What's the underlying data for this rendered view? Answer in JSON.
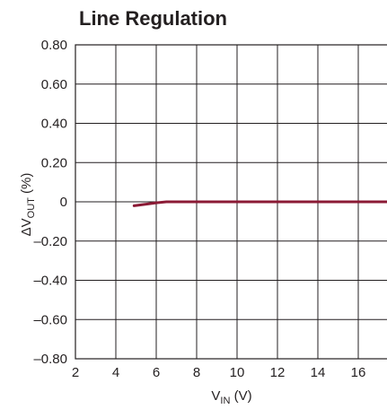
{
  "chart_data": {
    "type": "line",
    "title": "Line Regulation",
    "xlabel": {
      "main": "V",
      "sub": "IN",
      "unit": " (V)"
    },
    "ylabel": {
      "prefix": "ΔV",
      "sub": "OUT",
      "unit": " (%)"
    },
    "xlim": [
      2,
      18
    ],
    "ylim": [
      -0.8,
      0.8
    ],
    "x_ticks": [
      "2",
      "4",
      "6",
      "8",
      "10",
      "12",
      "14",
      "16"
    ],
    "y_ticks": [
      "0.80",
      "0.60",
      "0.40",
      "0.20",
      "0",
      "–0.20",
      "–0.40",
      "–0.60",
      "–0.80"
    ],
    "y_tick_values": [
      0.8,
      0.6,
      0.4,
      0.2,
      0,
      -0.2,
      -0.4,
      -0.6,
      -0.8
    ],
    "grid": true,
    "series": [
      {
        "color": "#8b1a35",
        "x": [
          4.9,
          5.5,
          6.0,
          6.5,
          7.0,
          8.0,
          10.0,
          12.0,
          14.0,
          16.0,
          18.0
        ],
        "y": [
          -0.02,
          -0.012,
          -0.005,
          0.0,
          0.0,
          0.0,
          0.0,
          0.0,
          0.0,
          0.0,
          0.0
        ]
      }
    ]
  }
}
